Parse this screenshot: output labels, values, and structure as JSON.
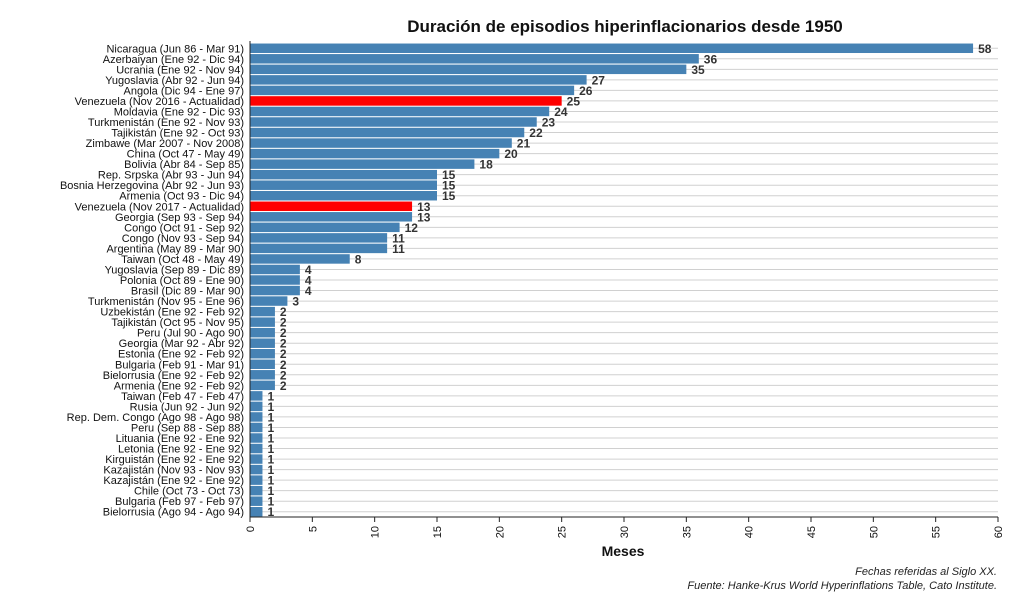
{
  "chart_data": {
    "type": "bar",
    "orientation": "horizontal",
    "title": "Duración de episodios hiperinflacionarios desde 1950",
    "xlabel": "Meses",
    "ylabel": "",
    "xlim": [
      0,
      60
    ],
    "xticks": [
      0,
      5,
      10,
      15,
      20,
      25,
      30,
      35,
      40,
      45,
      50,
      55,
      60
    ],
    "grid": "horizontal",
    "legend": "none",
    "colors": {
      "default": "#4682b4",
      "highlight": "#ff0000"
    },
    "categories": [
      "Nicaragua (Jun 86 - Mar 91)",
      "Azerbaiyan (Ene 92 - Dic 94)",
      "Ucrania (Ene 92 - Nov 94)",
      "Yugoslavia (Abr 92 - Jun 94)",
      "Angola (Dic 94 - Ene 97)",
      "Venezuela (Nov 2016 - Actualidad)",
      "Moldavia (Ene 92 - Dic 93)",
      "Turkmenistán (Ene 92 - Nov 93)",
      "Tajikistán (Ene 92 - Oct 93)",
      "Zimbawe (Mar 2007 - Nov 2008)",
      "China (Oct 47 - May 49)",
      "Bolivia (Abr 84 - Sep 85)",
      "Rep. Srpska (Abr 93 - Jun 94)",
      "Bosnia Herzegovina (Abr 92 - Jun 93)",
      "Armenia (Oct 93 - Dic 94)",
      "Venezuela (Nov 2017 - Actualidad)",
      "Georgia (Sep 93 - Sep 94)",
      "Congo (Oct 91 - Sep 92)",
      "Congo (Nov 93 - Sep 94)",
      "Argentina (May 89 - Mar 90)",
      "Taiwan (Oct 48 - May 49)",
      "Yugoslavia (Sep 89 - Dic 89)",
      "Polonia (Oct 89 - Ene 90)",
      "Brasil (Dic 89 - Mar 90)",
      "Turkmenistán (Nov 95 - Ene 96)",
      "Uzbekistán (Ene 92 - Feb 92)",
      "Tajikistán (Oct 95 - Nov 95)",
      "Peru (Jul 90 - Ago 90)",
      "Georgia (Mar 92 - Abr 92)",
      "Estonia (Ene 92 - Feb 92)",
      "Bulgaria (Feb 91 - Mar 91)",
      "Bielorrusia (Ene 92 - Feb 92)",
      "Armenia (Ene 92 - Feb 92)",
      "Taiwan (Feb 47 - Feb 47)",
      "Rusia (Jun 92 - Jun 92)",
      "Rep. Dem. Congo (Ago 98 - Ago 98)",
      "Peru (Sep 88 - Sep 88)",
      "Lituania (Ene 92 - Ene 92)",
      "Letonia (Ene 92 - Ene 92)",
      "Kirguistán (Ene 92 - Ene 92)",
      "Kazajistán (Nov 93 - Nov 93)",
      "Kazajistán (Ene 92 - Ene 92)",
      "Chile (Oct 73 - Oct 73)",
      "Bulgaria (Feb 97 - Feb 97)",
      "Bielorrusia (Ago 94 - Ago 94)"
    ],
    "values": [
      58,
      36,
      35,
      27,
      26,
      25,
      24,
      23,
      22,
      21,
      20,
      18,
      15,
      15,
      15,
      13,
      13,
      12,
      11,
      11,
      8,
      4,
      4,
      4,
      3,
      2,
      2,
      2,
      2,
      2,
      2,
      2,
      2,
      1,
      1,
      1,
      1,
      1,
      1,
      1,
      1,
      1,
      1,
      1,
      1
    ],
    "highlighted": [
      5,
      15
    ]
  },
  "captions": {
    "line1": "Fechas referidas al Siglo XX.",
    "line2": "Fuente: Hanke-Krus World Hyperinflations Table, Cato Institute."
  }
}
